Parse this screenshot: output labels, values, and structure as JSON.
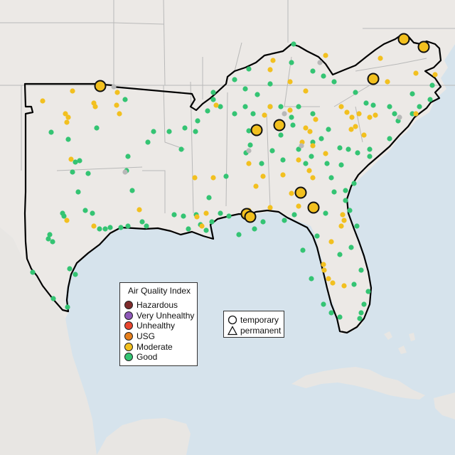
{
  "legend": {
    "title": "Air Quality Index",
    "categories": [
      {
        "label": "Hazardous",
        "color": "#7e2b2b"
      },
      {
        "label": "Very Unhealthy",
        "color": "#8e58b8"
      },
      {
        "label": "Unhealthy",
        "color": "#e8452e"
      },
      {
        "label": "USG",
        "color": "#e57f1c"
      },
      {
        "label": "Moderate",
        "color": "#f2c01f"
      },
      {
        "label": "Good",
        "color": "#34c473"
      }
    ]
  },
  "monitor_types": [
    {
      "label": "temporary",
      "symbol": "circle-icon"
    },
    {
      "label": "permanent",
      "symbol": "triangle-icon"
    }
  ],
  "colors": {
    "ocean": "#d6e3ec",
    "land": "#ece9e6",
    "focus_border": "#000000",
    "state_lines": "#b9b9b9"
  }
}
